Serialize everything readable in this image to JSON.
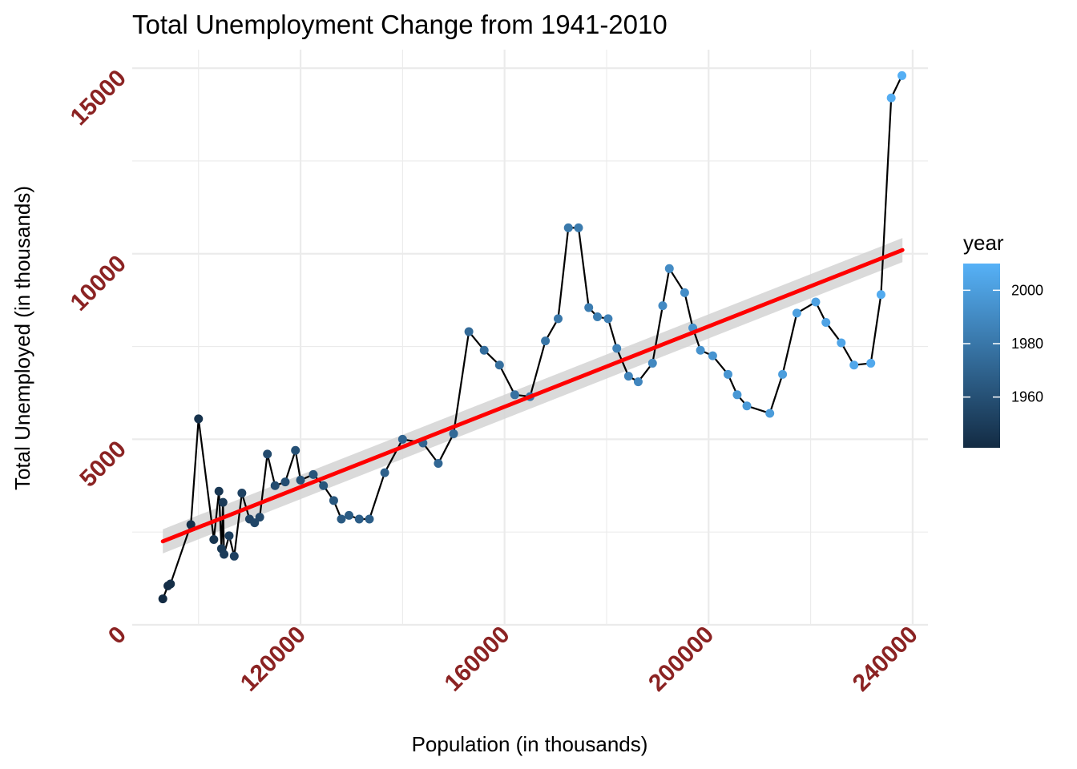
{
  "chart_data": {
    "type": "scatter",
    "title": "Total Unemployment Change from 1941-2010",
    "xlabel": "Population (in thousands)",
    "ylabel": "Total Unemployed (in thousands)",
    "xlim": [
      87000,
      243000
    ],
    "ylim": [
      0,
      15500
    ],
    "x_ticks": [
      120000,
      160000,
      200000,
      240000
    ],
    "x_tick_labels": [
      "120000",
      "160000",
      "200000",
      "240000"
    ],
    "y_ticks": [
      0,
      5000,
      10000,
      15000
    ],
    "y_tick_labels": [
      "0",
      "5000",
      "10000",
      "15000"
    ],
    "grid": true,
    "legend": {
      "title": "year",
      "position": "right",
      "range": [
        1941,
        2010
      ],
      "ticks": [
        1960,
        1980,
        2000
      ],
      "tick_labels": [
        "1960",
        "1980",
        "2000"
      ],
      "color_low": "#132b43",
      "color_high": "#56b1f7"
    },
    "colors": {
      "trend_line": "#ff0000",
      "confidence_band": "#d3d3d3",
      "connecting_line": "#000000",
      "tick_label": "#8b2323",
      "gridline": "#ebebeb"
    },
    "trend": {
      "x": [
        93000,
        238000
      ],
      "y": [
        2250,
        10100
      ],
      "band_halfwidth": [
        250,
        250
      ]
    },
    "series": [
      {
        "type": "line+points",
        "points": [
          {
            "x": 93000,
            "y": 700,
            "year": 1941
          },
          {
            "x": 94000,
            "y": 1050,
            "year": 1942
          },
          {
            "x": 94500,
            "y": 1100,
            "year": 1943
          },
          {
            "x": 98500,
            "y": 2700,
            "year": 1944
          },
          {
            "x": 100000,
            "y": 5550,
            "year": 1945
          },
          {
            "x": 103000,
            "y": 2300,
            "year": 1946
          },
          {
            "x": 104000,
            "y": 3600,
            "year": 1947
          },
          {
            "x": 104500,
            "y": 2050,
            "year": 1948
          },
          {
            "x": 104800,
            "y": 3300,
            "year": 1949
          },
          {
            "x": 105000,
            "y": 1900,
            "year": 1950
          },
          {
            "x": 106000,
            "y": 2400,
            "year": 1951
          },
          {
            "x": 107000,
            "y": 1850,
            "year": 1952
          },
          {
            "x": 108500,
            "y": 3550,
            "year": 1953
          },
          {
            "x": 110000,
            "y": 2850,
            "year": 1954
          },
          {
            "x": 111000,
            "y": 2750,
            "year": 1955
          },
          {
            "x": 112000,
            "y": 2900,
            "year": 1956
          },
          {
            "x": 113500,
            "y": 4600,
            "year": 1957
          },
          {
            "x": 115000,
            "y": 3750,
            "year": 1958
          },
          {
            "x": 117000,
            "y": 3850,
            "year": 1959
          },
          {
            "x": 119000,
            "y": 4700,
            "year": 1960
          },
          {
            "x": 120000,
            "y": 3900,
            "year": 1961
          },
          {
            "x": 122500,
            "y": 4050,
            "year": 1962
          },
          {
            "x": 124500,
            "y": 3750,
            "year": 1963
          },
          {
            "x": 126500,
            "y": 3350,
            "year": 1964
          },
          {
            "x": 128000,
            "y": 2850,
            "year": 1965
          },
          {
            "x": 129500,
            "y": 2950,
            "year": 1966
          },
          {
            "x": 131500,
            "y": 2850,
            "year": 1967
          },
          {
            "x": 133500,
            "y": 2850,
            "year": 1968
          },
          {
            "x": 136500,
            "y": 4100,
            "year": 1969
          },
          {
            "x": 140000,
            "y": 5000,
            "year": 1970
          },
          {
            "x": 144000,
            "y": 4900,
            "year": 1971
          },
          {
            "x": 147000,
            "y": 4350,
            "year": 1972
          },
          {
            "x": 150000,
            "y": 5150,
            "year": 1973
          },
          {
            "x": 153000,
            "y": 7900,
            "year": 1974
          },
          {
            "x": 156000,
            "y": 7400,
            "year": 1975
          },
          {
            "x": 159000,
            "y": 7000,
            "year": 1976
          },
          {
            "x": 162000,
            "y": 6200,
            "year": 1977
          },
          {
            "x": 165000,
            "y": 6150,
            "year": 1978
          },
          {
            "x": 168000,
            "y": 7650,
            "year": 1979
          },
          {
            "x": 170500,
            "y": 8250,
            "year": 1980
          },
          {
            "x": 172500,
            "y": 10700,
            "year": 1981
          },
          {
            "x": 174500,
            "y": 10700,
            "year": 1982
          },
          {
            "x": 176500,
            "y": 8550,
            "year": 1983
          },
          {
            "x": 178200,
            "y": 8300,
            "year": 1984
          },
          {
            "x": 180300,
            "y": 8250,
            "year": 1985
          },
          {
            "x": 182000,
            "y": 7450,
            "year": 1986
          },
          {
            "x": 184300,
            "y": 6700,
            "year": 1987
          },
          {
            "x": 186200,
            "y": 6550,
            "year": 1988
          },
          {
            "x": 189000,
            "y": 7050,
            "year": 1989
          },
          {
            "x": 191000,
            "y": 8600,
            "year": 1990
          },
          {
            "x": 192300,
            "y": 9600,
            "year": 1991
          },
          {
            "x": 195300,
            "y": 8950,
            "year": 1992
          },
          {
            "x": 196900,
            "y": 8000,
            "year": 1993
          },
          {
            "x": 198400,
            "y": 7400,
            "year": 1994
          },
          {
            "x": 200800,
            "y": 7250,
            "year": 1995
          },
          {
            "x": 203800,
            "y": 6750,
            "year": 1996
          },
          {
            "x": 205600,
            "y": 6200,
            "year": 1997
          },
          {
            "x": 207500,
            "y": 5900,
            "year": 1998
          },
          {
            "x": 212000,
            "y": 5700,
            "year": 1999
          },
          {
            "x": 214500,
            "y": 6750,
            "year": 2000
          },
          {
            "x": 217300,
            "y": 8400,
            "year": 2001
          },
          {
            "x": 221000,
            "y": 8700,
            "year": 2002
          },
          {
            "x": 223000,
            "y": 8150,
            "year": 2003
          },
          {
            "x": 226000,
            "y": 7600,
            "year": 2004
          },
          {
            "x": 228500,
            "y": 7000,
            "year": 2005
          },
          {
            "x": 231800,
            "y": 7050,
            "year": 2006
          },
          {
            "x": 233800,
            "y": 8900,
            "year": 2007
          },
          {
            "x": 235800,
            "y": 14200,
            "year": 2008
          },
          {
            "x": 237900,
            "y": 14800,
            "year": 2009
          }
        ]
      }
    ]
  }
}
